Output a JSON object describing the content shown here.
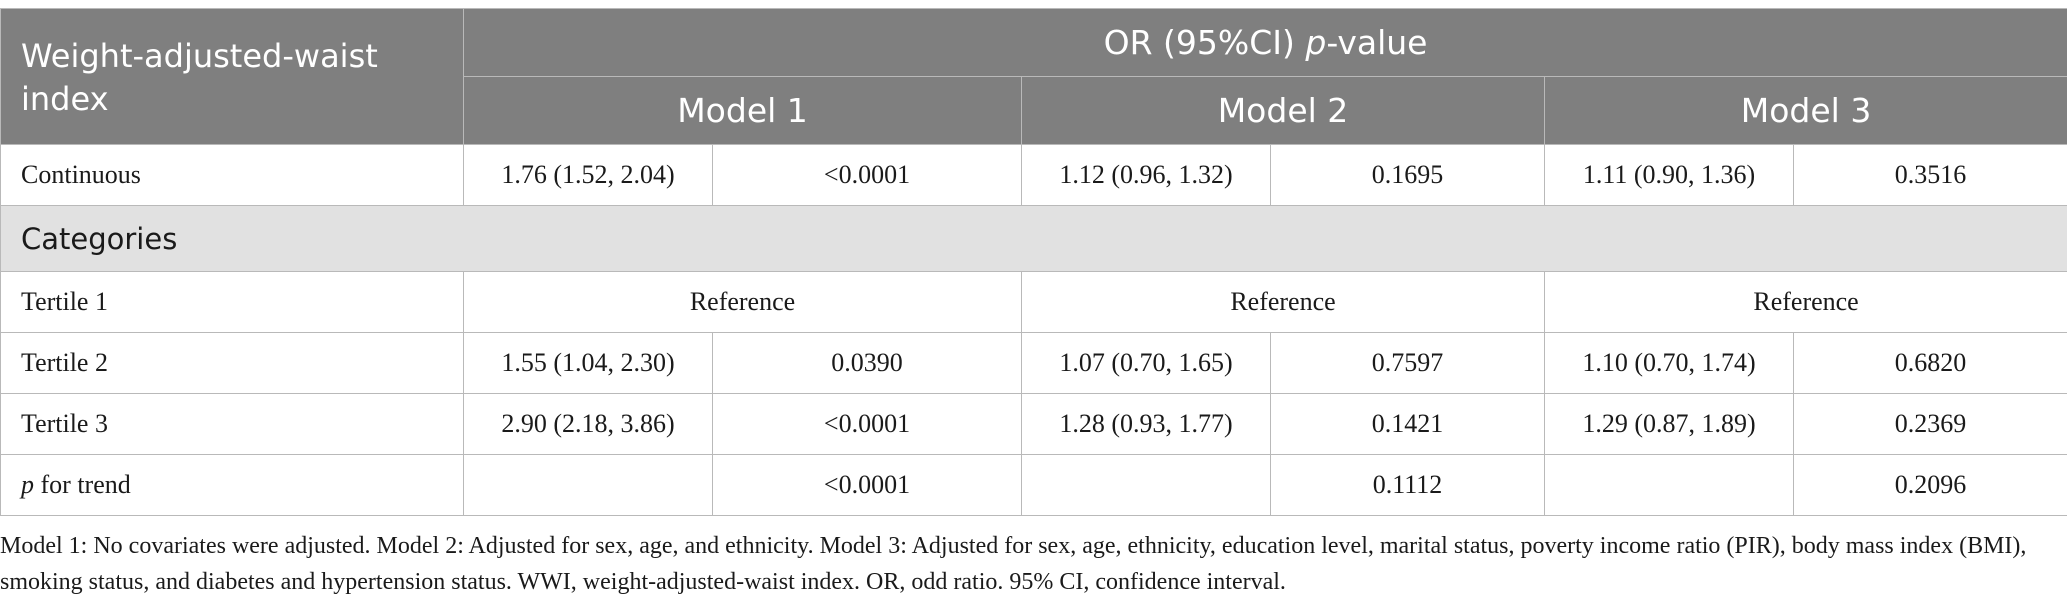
{
  "table": {
    "row_header": "Weight-adjusted-waist index",
    "top_header_prefix": "OR (95%CI) ",
    "top_header_p": "p",
    "top_header_suffix": "-value",
    "models": [
      "Model 1",
      "Model 2",
      "Model 3"
    ],
    "continuous": {
      "label": "Continuous",
      "cells": [
        "1.76 (1.52, 2.04)",
        "<0.0001",
        "1.12 (0.96, 1.32)",
        "0.1695",
        "1.11 (0.90, 1.36)",
        "0.3516"
      ]
    },
    "categories_label": "Categories",
    "tertile1": {
      "label": "Tertile 1",
      "refs": [
        "Reference",
        "Reference",
        "Reference"
      ]
    },
    "tertile2": {
      "label": "Tertile 2",
      "cells": [
        "1.55 (1.04, 2.30)",
        "0.0390",
        "1.07 (0.70, 1.65)",
        "0.7597",
        "1.10 (0.70, 1.74)",
        "0.6820"
      ]
    },
    "tertile3": {
      "label": "Tertile 3",
      "cells": [
        "2.90 (2.18, 3.86)",
        "<0.0001",
        "1.28 (0.93, 1.77)",
        "0.1421",
        "1.29 (0.87, 1.89)",
        "0.2369"
      ]
    },
    "trend": {
      "label_p": "p",
      "label_rest": " for trend",
      "cells": [
        "",
        "<0.0001",
        "",
        "0.1112",
        "",
        "0.2096"
      ]
    }
  },
  "footnote": "Model 1: No covariates were adjusted. Model 2: Adjusted for sex, age, and ethnicity. Model 3: Adjusted for sex, age, ethnicity, education level, marital status, poverty income ratio (PIR), body mass index (BMI), smoking status, and diabetes and hypertension status. WWI, weight-adjusted-waist index. OR, odd ratio. 95% CI, confidence interval."
}
